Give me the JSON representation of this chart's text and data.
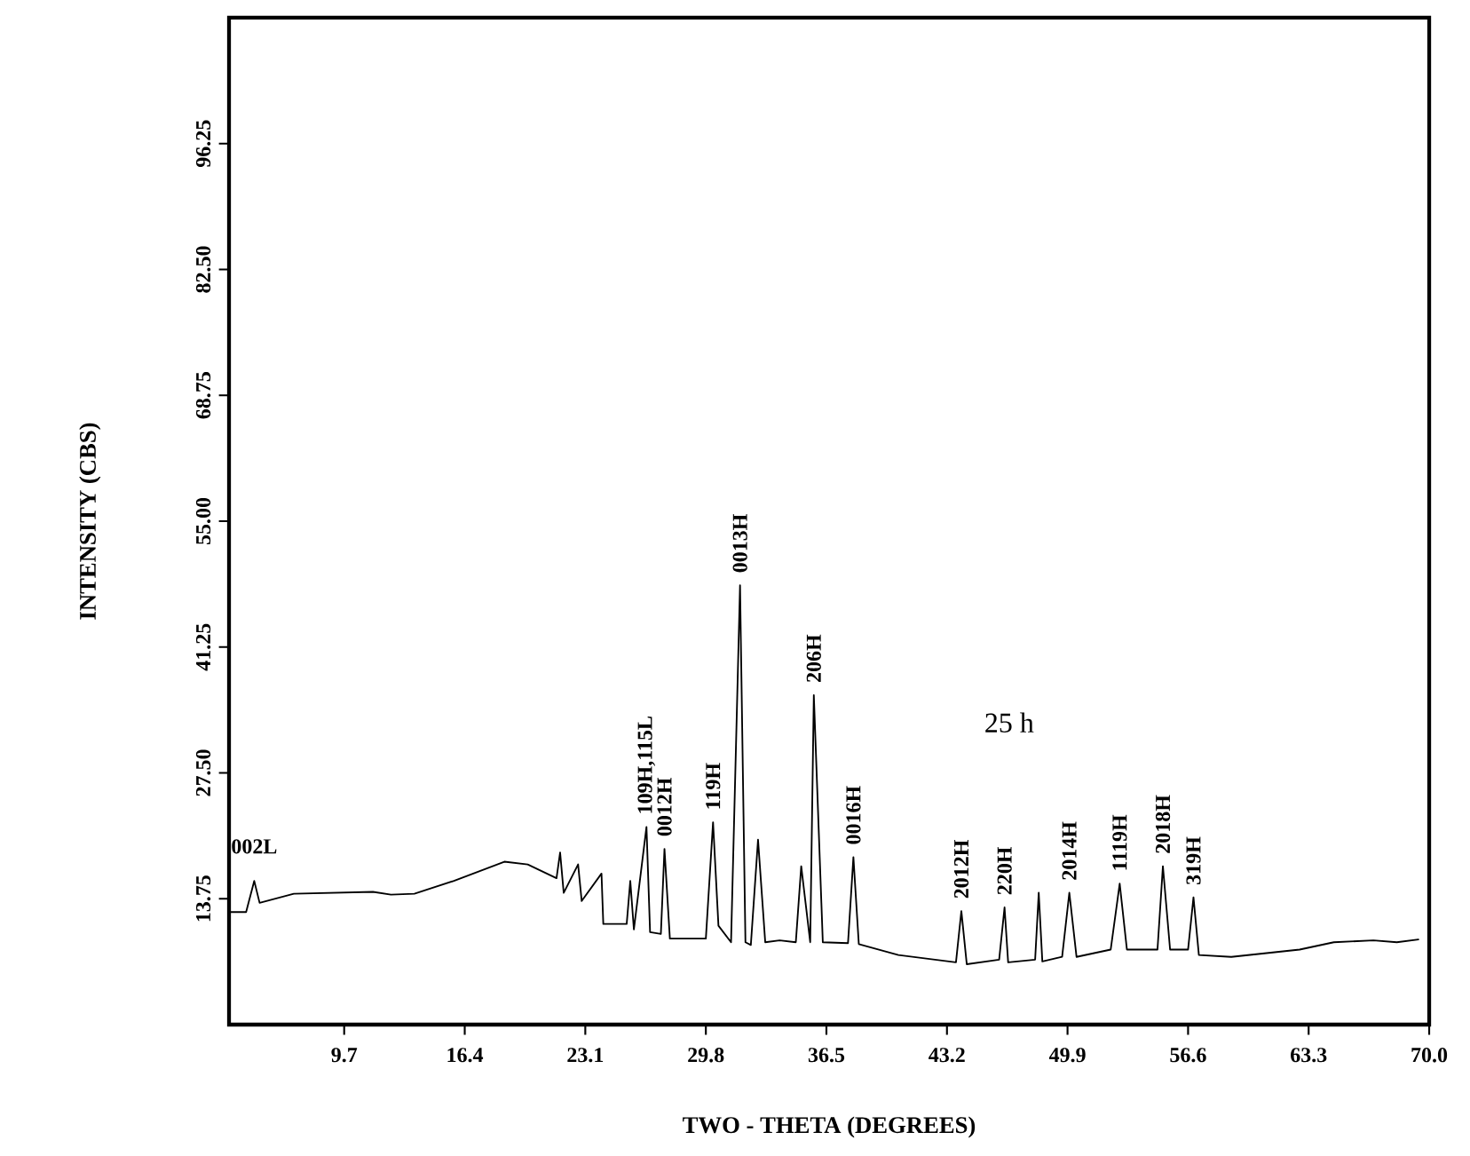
{
  "chart_data": {
    "type": "line",
    "xlabel": "TWO - THETA (DEGREES)",
    "ylabel": "INTENSITY (CBS)",
    "color": "#000000",
    "x": [
      3.3,
      4.25,
      4.7,
      5.0,
      6.9,
      11.3,
      12.3,
      13.6,
      15.8,
      18.6,
      19.9,
      21.5,
      21.7,
      21.9,
      22.7,
      22.9,
      24.0,
      24.1,
      25.4,
      25.6,
      25.8,
      26.5,
      26.7,
      27.3,
      27.5,
      27.8,
      29.8,
      30.2,
      30.5,
      31.2,
      31.7,
      32.0,
      32.3,
      32.7,
      33.1,
      33.9,
      34.8,
      35.1,
      35.6,
      35.8,
      36.3,
      37.7,
      38.0,
      38.3,
      40.5,
      43.7,
      44.0,
      44.3,
      46.1,
      46.4,
      46.6,
      48.1,
      48.3,
      48.5,
      49.6,
      50.0,
      50.4,
      52.3,
      52.8,
      53.2,
      54.9,
      55.2,
      55.6,
      56.6,
      56.9,
      57.2,
      59.0,
      62.8,
      64.7,
      66.9,
      68.2,
      69.4
    ],
    "values": [
      12.3,
      12.3,
      15.7,
      13.3,
      14.3,
      14.5,
      14.2,
      14.3,
      15.7,
      17.8,
      17.5,
      16.0,
      18.8,
      14.4,
      17.5,
      13.5,
      16.5,
      11.0,
      11.0,
      15.7,
      10.4,
      21.6,
      10.1,
      9.9,
      19.2,
      9.4,
      9.4,
      22.1,
      10.8,
      9.0,
      48.0,
      9.0,
      8.7,
      20.2,
      9.0,
      9.2,
      9.0,
      17.3,
      9.0,
      36.0,
      9.0,
      8.9,
      18.3,
      8.8,
      7.6,
      6.8,
      12.4,
      6.6,
      7.1,
      12.8,
      6.8,
      7.1,
      14.4,
      6.9,
      7.4,
      14.4,
      7.4,
      8.2,
      15.4,
      8.2,
      8.2,
      17.3,
      8.2,
      8.2,
      13.9,
      7.6,
      7.4,
      8.2,
      9.0,
      9.2,
      9.0,
      9.3
    ],
    "xlim": [
      3.3,
      70.0
    ],
    "ylim": [
      0,
      110
    ],
    "xticks": [
      9.7,
      16.4,
      23.1,
      29.8,
      36.5,
      43.2,
      49.9,
      56.6,
      63.3,
      {
        "value": 70,
        "label": "70.0"
      }
    ],
    "yticks": [
      13.75,
      {
        "value": 27.5,
        "label": "27.50"
      },
      41.25,
      {
        "value": 55,
        "label": "55.00"
      },
      68.75,
      {
        "value": 82.5,
        "label": "82.50"
      },
      96.25
    ],
    "annotations": [
      {
        "text": "002L",
        "x": 4.7,
        "y": 15.7
      },
      {
        "text": "109H,115L",
        "x": 26.5,
        "y": 21.6
      },
      {
        "text": "0012H",
        "x": 27.5,
        "y": 19.2
      },
      {
        "text": "119H",
        "x": 30.2,
        "y": 22.1
      },
      {
        "text": "0013H",
        "x": 31.7,
        "y": 48.0
      },
      {
        "text": "206H",
        "x": 35.8,
        "y": 36.0
      },
      {
        "text": "0016H",
        "x": 38.0,
        "y": 18.3
      },
      {
        "text": "2012H",
        "x": 44.0,
        "y": 12.4
      },
      {
        "text": "220H",
        "x": 46.4,
        "y": 12.8
      },
      {
        "text": "2014H",
        "x": 50.0,
        "y": 14.4
      },
      {
        "text": "1119H",
        "x": 52.8,
        "y": 15.4
      },
      {
        "text": "2018H",
        "x": 55.2,
        "y": 17.3
      },
      {
        "text": "319H",
        "x": 56.9,
        "y": 13.9
      },
      "25 h"
    ]
  }
}
